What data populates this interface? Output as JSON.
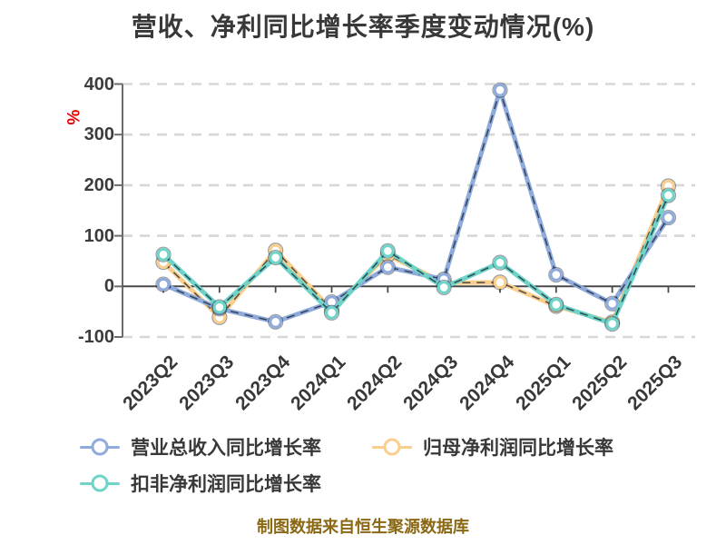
{
  "title": "营收、净利同比增长率季度变动情况(%)",
  "y_axis": {
    "unit_label": "%"
  },
  "footer": "制图数据来自恒生聚源数据库",
  "legend": [
    {
      "label": "营业总收入同比增长率",
      "color": "#8FABDC"
    },
    {
      "label": "归母净利润同比增长率",
      "color": "#FACE8C"
    },
    {
      "label": "扣非净利润同比增长率",
      "color": "#6ED4C8"
    }
  ],
  "colors": {
    "title_text": "#383838",
    "percent_label": "#E60000",
    "footer_text": "#8B6914",
    "grid_line": "#D7D7D7",
    "zero_axis": "#4A4A4A",
    "spine": "#6B6B6B",
    "tick_label": "#3C3C3C",
    "dash_overlay": "#1B2433",
    "marker_fill": "#FFFFFF"
  },
  "chart_data": {
    "type": "line",
    "title": "营收、净利同比增长率季度变动情况(%)",
    "xlabel": "",
    "ylabel": "%",
    "ylim": [
      -100,
      400
    ],
    "y_ticks": [
      400,
      300,
      200,
      100,
      0,
      -100
    ],
    "grid": "dashed-horizontal",
    "legend_position": "bottom",
    "categories": [
      "2023Q2",
      "2023Q3",
      "2023Q4",
      "2024Q1",
      "2024Q2",
      "2024Q3",
      "2024Q4",
      "2025Q1",
      "2025Q2",
      "2025Q3"
    ],
    "series": [
      {
        "name": "营业总收入同比增长率",
        "color": "#8FABDC",
        "values": [
          4,
          -44,
          -70,
          -31,
          38,
          14,
          388,
          23,
          -34,
          136
        ]
      },
      {
        "name": "归母净利润同比增长率",
        "color": "#FACE8C",
        "values": [
          48,
          -61,
          71,
          -46,
          62,
          7,
          8,
          -39,
          -71,
          198
        ]
      },
      {
        "name": "扣非净利润同比增长率",
        "color": "#6ED4C8",
        "values": [
          63,
          -41,
          57,
          -52,
          70,
          -2,
          47,
          -36,
          -74,
          180
        ]
      }
    ]
  }
}
